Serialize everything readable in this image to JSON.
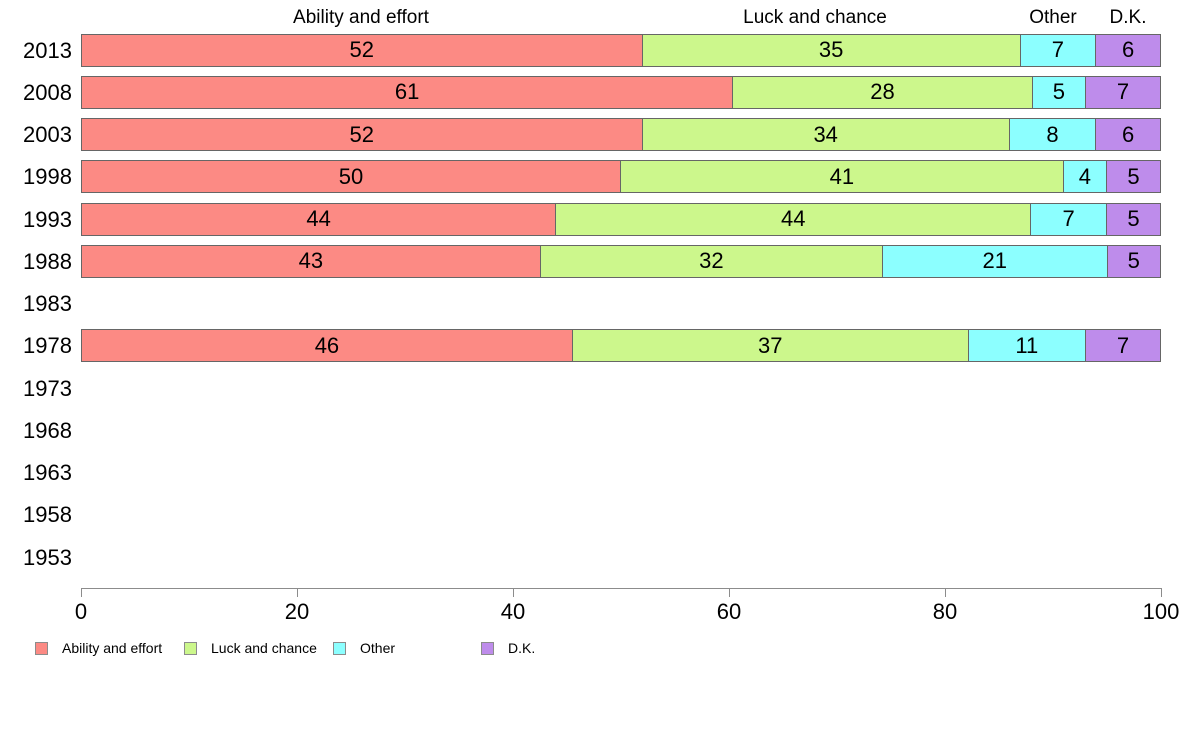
{
  "chart_data": {
    "type": "bar",
    "orientation": "horizontal",
    "stacked": true,
    "normalized": true,
    "title": "",
    "xlabel": "",
    "ylabel": "",
    "xlim": [
      0,
      100
    ],
    "xticks": [
      "0",
      "20",
      "40",
      "60",
      "80",
      "100"
    ],
    "grid": false,
    "categories": [
      "2013",
      "2008",
      "2003",
      "1998",
      "1993",
      "1988",
      "1983",
      "1978",
      "1973",
      "1968",
      "1963",
      "1958",
      "1953"
    ],
    "series": [
      {
        "name": "Ability and effort",
        "color": "#FC8A84",
        "values": [
          52,
          61,
          52,
          50,
          44,
          43,
          null,
          46,
          null,
          null,
          null,
          null,
          null
        ]
      },
      {
        "name": "Luck and chance",
        "color": "#CCF78C",
        "values": [
          35,
          28,
          34,
          41,
          44,
          32,
          null,
          37,
          null,
          null,
          null,
          null,
          null
        ]
      },
      {
        "name": "Other",
        "color": "#8CFFFF",
        "values": [
          7,
          5,
          8,
          4,
          7,
          21,
          null,
          11,
          null,
          null,
          null,
          null,
          null
        ]
      },
      {
        "name": "D.K.",
        "color": "#BE8CEB",
        "values": [
          6,
          7,
          6,
          5,
          5,
          5,
          null,
          7,
          null,
          null,
          null,
          null,
          null
        ]
      }
    ],
    "column_headers": [
      "Ability and effort",
      "Luck and chance",
      "Other",
      "D.K."
    ],
    "legend": {
      "position": "bottom",
      "labels": [
        "Ability and effort",
        "Luck and chance",
        "Other",
        "D.K."
      ]
    }
  }
}
